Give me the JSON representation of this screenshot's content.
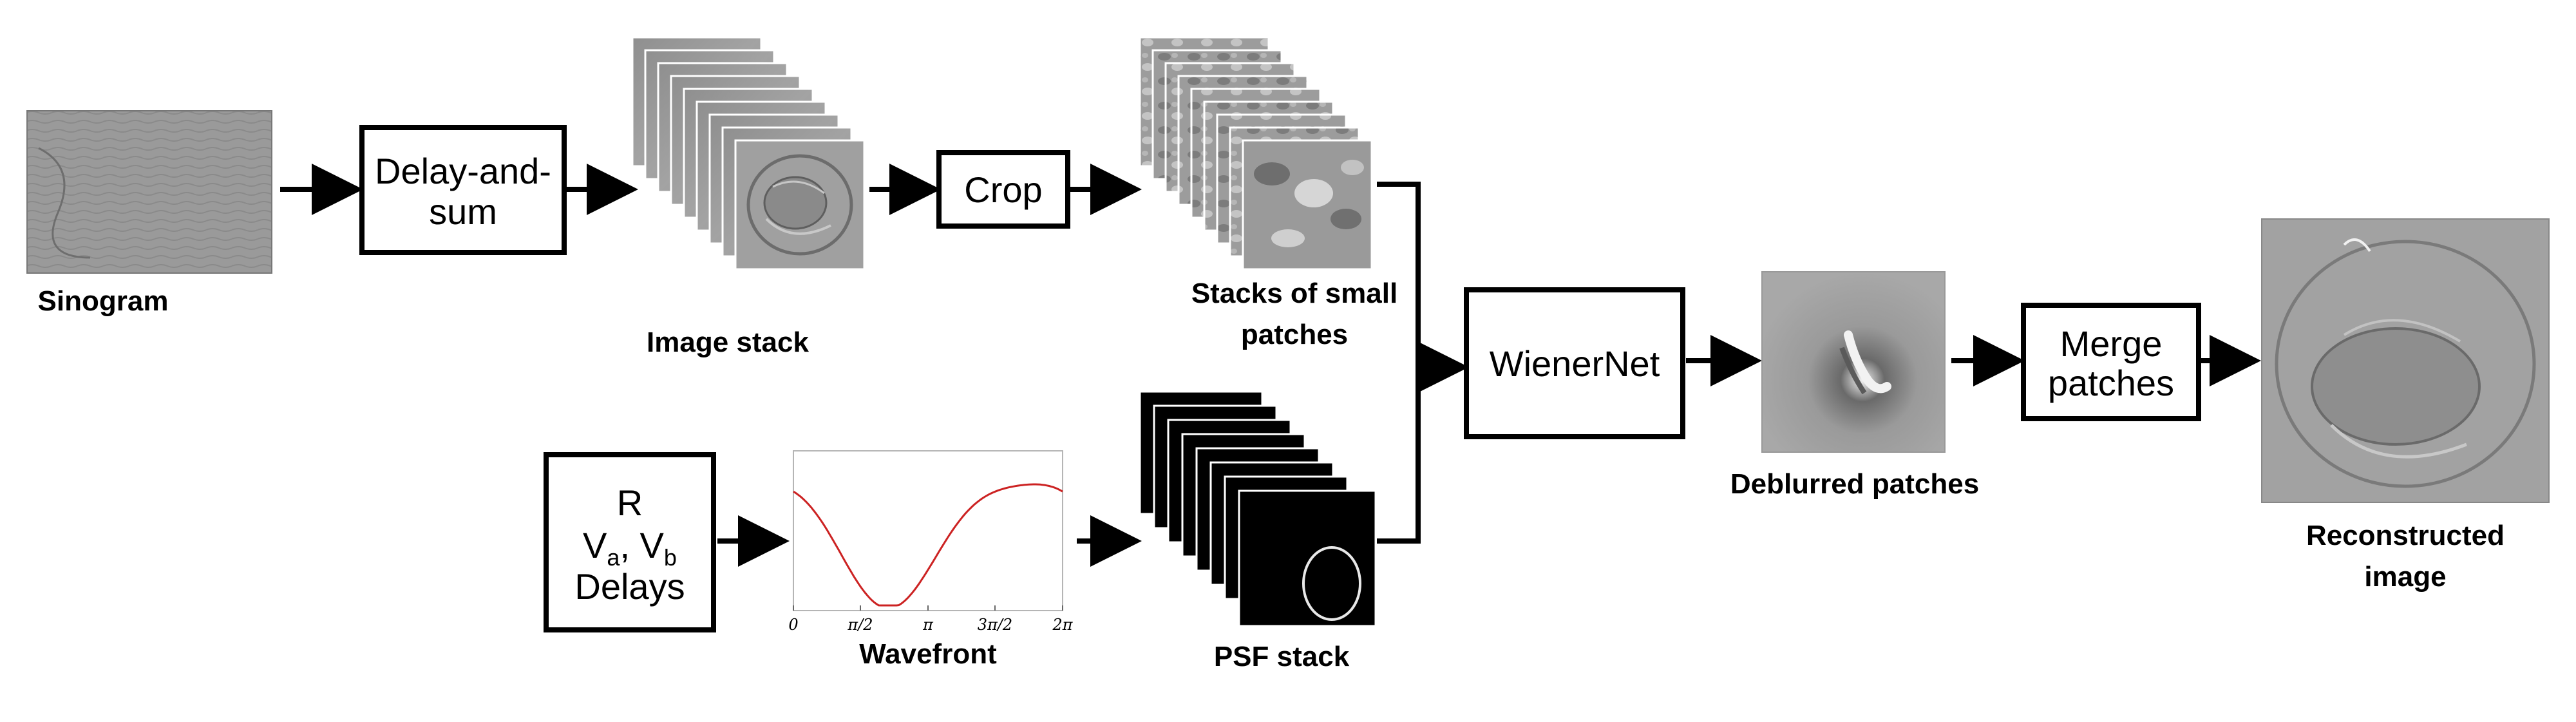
{
  "captions": {
    "sinogram": "Sinogram",
    "image_stack": "Image stack",
    "small_patches_line1": "Stacks of small",
    "small_patches_line2": "patches",
    "psf_stack": "PSF stack",
    "wavefront": "Wavefront",
    "deblurred": "Deblurred patches",
    "reconstructed_line1": "Reconstructed",
    "reconstructed_line2": "image"
  },
  "boxes": {
    "delay_and_sum_line1": "Delay-and-",
    "delay_and_sum_line2": "sum",
    "crop": "Crop",
    "wienernet": "WienerNet",
    "merge_line1": "Merge",
    "merge_line2": "patches",
    "params_line1": "R",
    "params_va": "V",
    "params_va_sub": "a",
    "params_sep": ", V",
    "params_vb_sub": "b",
    "params_line3": "Delays"
  },
  "wavefront_plot": {
    "x_ticks": [
      "0",
      "π/2",
      "π",
      "3π/2",
      "2π"
    ],
    "curve_color": "#cc2222"
  }
}
